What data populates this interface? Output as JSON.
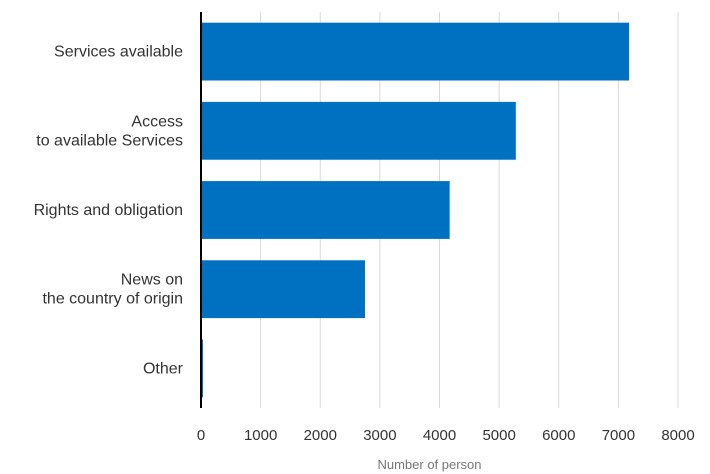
{
  "chart_data": {
    "type": "bar",
    "orientation": "horizontal",
    "categories": [
      [
        "Services available"
      ],
      [
        "Access",
        "to available Services"
      ],
      [
        "Rights and obligation"
      ],
      [
        "News on",
        "the country of origin"
      ],
      [
        "Other"
      ]
    ],
    "values": [
      7180,
      5280,
      4170,
      2750,
      30
    ],
    "xlabel": "Number of person",
    "ylabel": "",
    "title": "",
    "xlim": [
      0,
      8000
    ],
    "xticks": [
      0,
      1000,
      2000,
      3000,
      4000,
      5000,
      6000,
      7000,
      8000
    ],
    "grid": "vertical",
    "legend": "none",
    "bar_color": "#0070C0",
    "grid_color": "#D9D9D9",
    "axis_color": "#000000"
  }
}
